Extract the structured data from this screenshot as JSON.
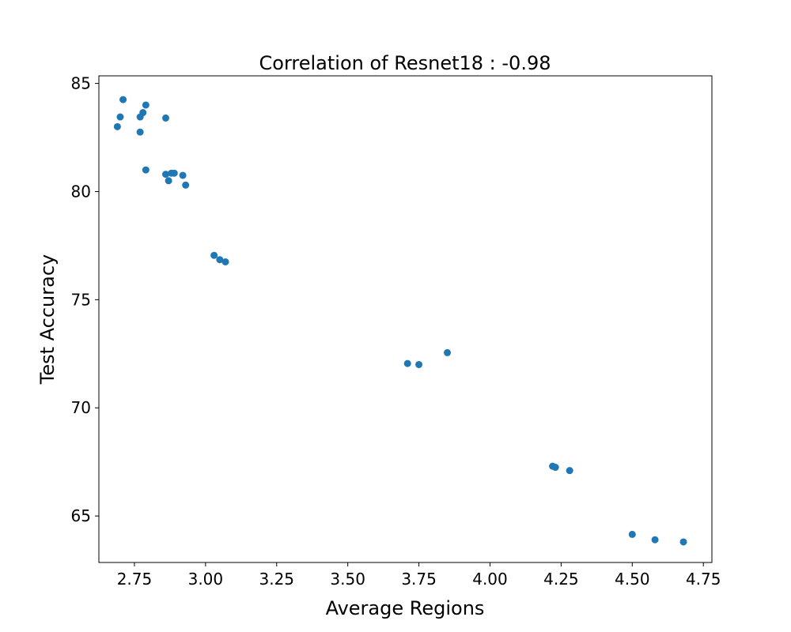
{
  "chart_data": {
    "type": "scatter",
    "title": "Correlation of Resnet18 : -0.98",
    "xlabel": "Average Regions",
    "ylabel": "Test Accuracy",
    "xlim": [
      2.625,
      4.78
    ],
    "ylim": [
      62.85,
      85.35
    ],
    "grid": false,
    "legend": "none",
    "marker_color": "#1f77b4",
    "x_ticks": [
      2.75,
      3.0,
      3.25,
      3.5,
      3.75,
      4.0,
      4.25,
      4.5,
      4.75
    ],
    "x_tick_labels": [
      "2.75",
      "3.00",
      "3.25",
      "3.50",
      "3.75",
      "4.00",
      "4.25",
      "4.50",
      "4.75"
    ],
    "y_ticks": [
      65,
      70,
      75,
      80,
      85
    ],
    "y_tick_labels": [
      "65",
      "70",
      "75",
      "80",
      "85"
    ],
    "points": [
      {
        "x": 2.71,
        "y": 84.25
      },
      {
        "x": 2.79,
        "y": 84.0
      },
      {
        "x": 2.78,
        "y": 83.65
      },
      {
        "x": 2.7,
        "y": 83.45
      },
      {
        "x": 2.77,
        "y": 83.45
      },
      {
        "x": 2.86,
        "y": 83.4
      },
      {
        "x": 2.69,
        "y": 83.0
      },
      {
        "x": 2.77,
        "y": 82.75
      },
      {
        "x": 2.79,
        "y": 81.0
      },
      {
        "x": 2.86,
        "y": 80.8
      },
      {
        "x": 2.88,
        "y": 80.85
      },
      {
        "x": 2.89,
        "y": 80.85
      },
      {
        "x": 2.92,
        "y": 80.75
      },
      {
        "x": 2.87,
        "y": 80.5
      },
      {
        "x": 2.93,
        "y": 80.3
      },
      {
        "x": 3.03,
        "y": 77.05
      },
      {
        "x": 3.05,
        "y": 76.85
      },
      {
        "x": 3.07,
        "y": 76.75
      },
      {
        "x": 3.71,
        "y": 72.05
      },
      {
        "x": 3.75,
        "y": 72.0
      },
      {
        "x": 3.85,
        "y": 72.55
      },
      {
        "x": 4.22,
        "y": 67.3
      },
      {
        "x": 4.23,
        "y": 67.25
      },
      {
        "x": 4.28,
        "y": 67.1
      },
      {
        "x": 4.5,
        "y": 64.15
      },
      {
        "x": 4.58,
        "y": 63.9
      },
      {
        "x": 4.68,
        "y": 63.8
      }
    ]
  }
}
